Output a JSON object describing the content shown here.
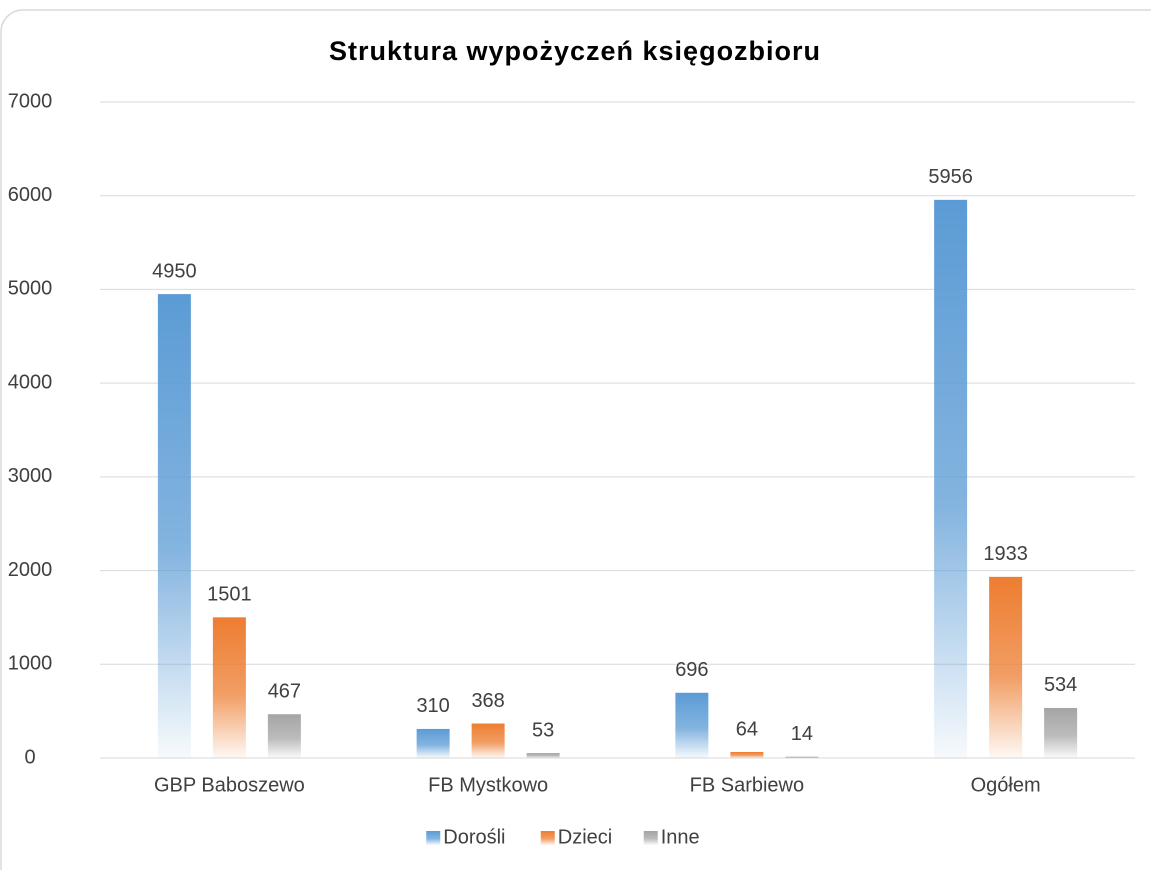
{
  "chart_data": {
    "type": "bar",
    "title": "Struktura wypożyczeń księgozbioru",
    "categories": [
      "GBP Baboszewo",
      "FB Mystkowo",
      "FB Sarbiewo",
      "Ogółem"
    ],
    "series": [
      {
        "name": "Dorośli",
        "color": "#5b9bd5",
        "values": [
          4950,
          310,
          696,
          5956
        ]
      },
      {
        "name": "Dzieci",
        "color": "#ed7d31",
        "values": [
          1501,
          368,
          64,
          1933
        ]
      },
      {
        "name": "Inne",
        "color": "#a5a5a5",
        "values": [
          467,
          53,
          14,
          534
        ]
      }
    ],
    "ylim": [
      0,
      7000
    ],
    "yticks": [
      0,
      1000,
      2000,
      3000,
      4000,
      5000,
      6000,
      7000
    ],
    "grid": true,
    "legend": "bottom"
  }
}
